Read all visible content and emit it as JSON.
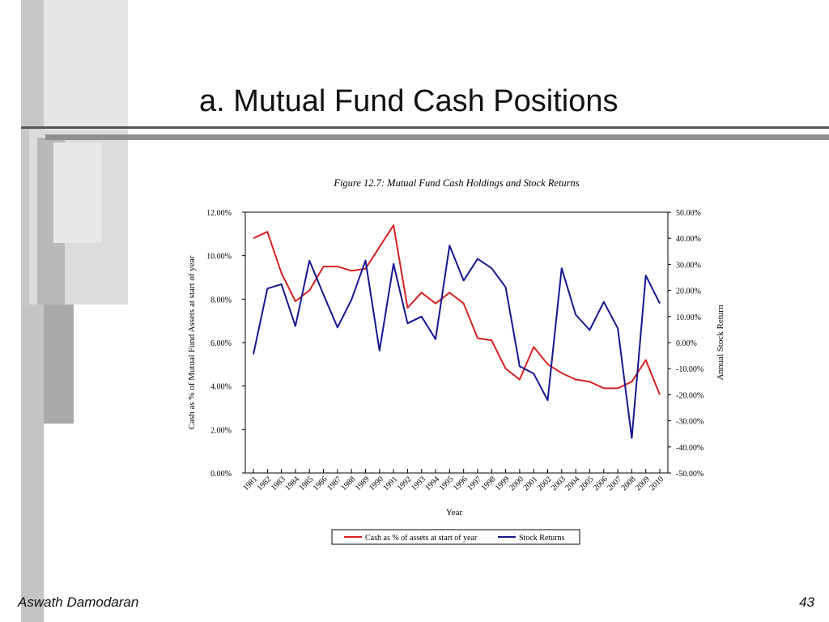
{
  "slide": {
    "title": "a. Mutual Fund Cash Positions",
    "author": "Aswath Damodaran",
    "page_number": "43"
  },
  "colors": {
    "cash_series": "#d42222",
    "returns_series": "#16168f",
    "decor_light": "#e6e6e6",
    "decor_mid": "#c4c4c4",
    "decor_dark": "#a9a9a9"
  },
  "chart_data": {
    "type": "line",
    "title": "Figure 12.7: Mutual Fund Cash Holdings and Stock Returns",
    "xlabel": "Year",
    "ylabel_left": "Cash as % of Mutual Fund Assets at start of year",
    "ylabel_right": "Annual Stock Return",
    "x": [
      1981,
      1982,
      1983,
      1984,
      1985,
      1986,
      1987,
      1988,
      1989,
      1990,
      1991,
      1992,
      1993,
      1994,
      1995,
      1996,
      1997,
      1998,
      1999,
      2000,
      2001,
      2002,
      2003,
      2004,
      2005,
      2006,
      2007,
      2008,
      2009,
      2010
    ],
    "y_left_ticks": [
      "0.00%",
      "2.00%",
      "4.00%",
      "6.00%",
      "8.00%",
      "10.00%",
      "12.00%"
    ],
    "y_left_lim": [
      0,
      12
    ],
    "y_right_ticks": [
      "-50.00%",
      "-40.00%",
      "-30.00%",
      "-20.00%",
      "-10.00%",
      "0.00%",
      "10.00%",
      "20.00%",
      "30.00%",
      "40.00%",
      "50.00%"
    ],
    "y_right_lim": [
      -50,
      50
    ],
    "grid": false,
    "legend_position": "bottom",
    "series": [
      {
        "name": "Cash as % of assets at start of year",
        "axis": "left",
        "values": [
          10.8,
          11.1,
          9.2,
          7.9,
          8.4,
          9.5,
          9.5,
          9.3,
          9.4,
          10.4,
          11.4,
          7.6,
          8.3,
          7.8,
          8.3,
          7.8,
          6.2,
          6.1,
          4.8,
          4.3,
          5.8,
          5.0,
          4.6,
          4.3,
          4.2,
          3.9,
          3.9,
          4.2,
          5.2,
          3.6
        ]
      },
      {
        "name": "Stock Returns",
        "axis": "right",
        "values": [
          -4.5,
          20.7,
          22.4,
          6.3,
          31.4,
          18.4,
          5.8,
          16.5,
          31.5,
          -3.1,
          30.2,
          7.4,
          10.0,
          1.3,
          37.2,
          23.8,
          32.1,
          28.5,
          21.2,
          -9.1,
          -11.9,
          -22.1,
          28.5,
          10.7,
          4.8,
          15.6,
          5.5,
          -36.6,
          25.7,
          15.0
        ]
      }
    ]
  }
}
